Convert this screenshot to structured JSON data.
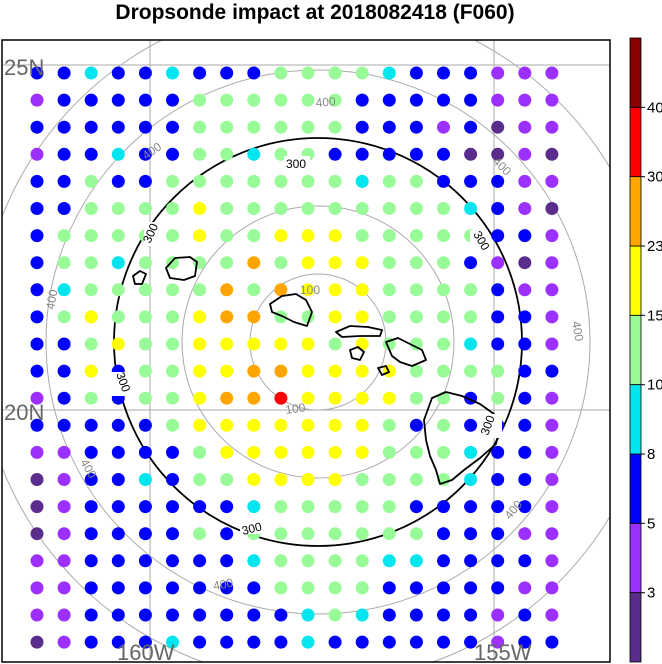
{
  "title": "Dropsonde impact at 2018082418 (F060)",
  "map": {
    "lat_labels": [
      "25N",
      "20N"
    ],
    "lon_labels": [
      "160W",
      "155W"
    ],
    "contour_black_label": "300",
    "contour_gray_labels": [
      "100",
      "400"
    ],
    "grid_lat": [
      25,
      20
    ],
    "grid_lon": [
      -160,
      -155
    ],
    "rings_gray_km": [
      100,
      200,
      400,
      500
    ],
    "ring_black_km": 300
  },
  "colorbar": {
    "ticks": [
      "3",
      "5",
      "8",
      "10",
      "15",
      "23",
      "30",
      "40"
    ],
    "colors": [
      "#5a2d8c",
      "#9b30ff",
      "#0000ff",
      "#00e5ee",
      "#98fb98",
      "#ffff00",
      "#ffa500",
      "#ff0000",
      "#8b0000"
    ]
  },
  "chart_data": {
    "type": "heatmap",
    "title": "Dropsonde impact at 2018082418 (F060)",
    "legend_position": "right",
    "bins": [
      "<3",
      "3-5",
      "5-8",
      "8-10",
      "10-15",
      "15-23",
      "23-30",
      "30-40",
      ">40"
    ],
    "bin_colors": [
      "#5a2d8c",
      "#9b30ff",
      "#0000ff",
      "#00e5ee",
      "#98fb98",
      "#ffff00",
      "#ffa500",
      "#ff0000",
      "#8b0000"
    ],
    "grid_rows": [
      "BBCBBCBBBGGGGCBBBPPP",
      "PBBBBBGGGGGGBBBBBPPP",
      "BBBBBBGGGGGGBBBPBDPP",
      "PBBCBBGGCGGBBBBBDDPD",
      "BBGBBGGGGGGGCGGBBBPP",
      "BBGGGGYGGGGGGGGGCBPD",
      "BGGGGGYGGYYYGGGGGBBP",
      "BGGCGGGGOGYYYGGGBPDP",
      "BCGGGGGOGOYYYGGGGBPP",
      "BGYGGGYOOGGYYGGGGBBP",
      "BBGYGGYYYYYGYGGGCBBP",
      "BBYBGGYYOOYYYYGGGGBB",
      "PBGBGGYOORYYYYGGBGBP",
      "BBBBBGYYYYYYYGBGBBBP",
      "PPBBBBGYYYYYYGGGCBBP",
      "DPBBCBGGYYYYGGGGCBBP",
      "DPBBBBBBCGGGGGBBBBBP",
      "DPBBBBGBGGGGGGGBBBPP",
      "PPBBBBBBCGGGGCCBBBBP",
      "PPBBBBBBBGGGGBBBBBPP",
      "PPBBBBBBBBCGCBBBBPBP",
      "DPBBBCBBBBCBBBBBBPBB"
    ],
    "grid_legend": {
      "D": "<3",
      "P": "3-5",
      "B": "5-8",
      "C": "8-10",
      "G": "10-15",
      "Y": "15-23",
      "O": "23-30",
      "R": "30-40"
    }
  }
}
